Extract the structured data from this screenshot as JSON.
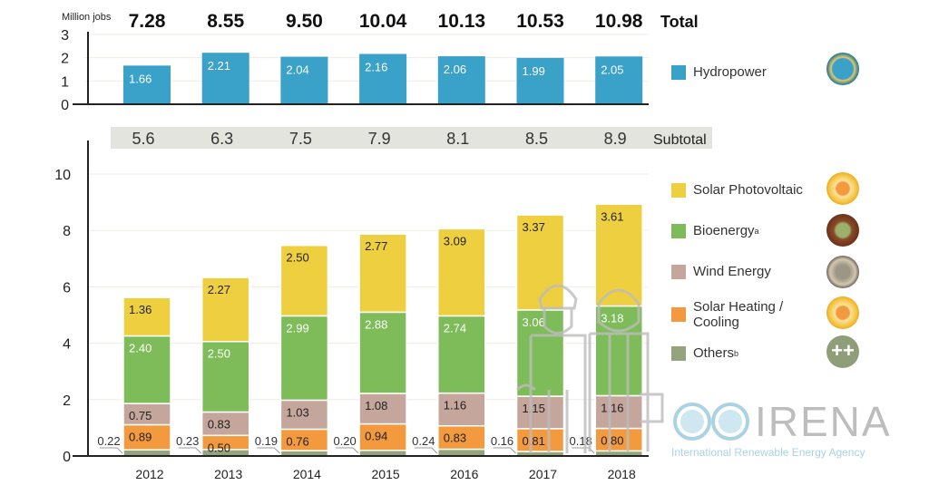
{
  "chart_data": [
    {
      "type": "bar",
      "unit_label": "Million jobs",
      "categories": [
        "2012",
        "2013",
        "2014",
        "2015",
        "2016",
        "2017",
        "2018"
      ],
      "ylim": [
        0,
        3
      ],
      "yticks": [
        0,
        1,
        2,
        3
      ],
      "grid": true,
      "series": [
        {
          "name": "Hydropower",
          "values": [
            1.66,
            2.21,
            2.04,
            2.16,
            2.06,
            1.99,
            2.05
          ],
          "color": "#3aa1c9"
        }
      ],
      "totals_label": "Total",
      "totals": [
        "7.28",
        "8.55",
        "9.50",
        "10.04",
        "10.13",
        "10.53",
        "10.98"
      ],
      "legend_position": "right"
    },
    {
      "type": "stacked-bar",
      "categories": [
        "2012",
        "2013",
        "2014",
        "2015",
        "2016",
        "2017",
        "2018"
      ],
      "ylim": [
        0,
        10
      ],
      "yticks": [
        0,
        2,
        4,
        6,
        8,
        10
      ],
      "grid": true,
      "subtotal_label": "Subtotal",
      "subtotals": [
        "5.6",
        "6.3",
        "7.5",
        "7.9",
        "8.1",
        "8.5",
        "8.9"
      ],
      "series": [
        {
          "name": "Others",
          "superscript": "b",
          "values": [
            0.22,
            0.23,
            0.19,
            0.2,
            0.24,
            0.16,
            0.18
          ],
          "color": "#95a47c"
        },
        {
          "name": "Solar Heating / Cooling",
          "values": [
            0.89,
            0.5,
            0.76,
            0.94,
            0.83,
            0.81,
            0.8
          ],
          "color": "#f39a3f"
        },
        {
          "name": "Wind Energy",
          "values": [
            0.75,
            0.83,
            1.03,
            1.08,
            1.16,
            1.15,
            1.16
          ],
          "color": "#c4a69c"
        },
        {
          "name": "Bioenergy",
          "superscript": "a",
          "values": [
            2.4,
            2.5,
            2.99,
            2.88,
            2.74,
            3.06,
            3.18
          ],
          "color": "#7dbc58"
        },
        {
          "name": "Solar Photovoltaic",
          "values": [
            1.36,
            2.27,
            2.5,
            2.77,
            3.09,
            3.37,
            3.61
          ],
          "color": "#eecf3f"
        }
      ],
      "legend_position": "right"
    }
  ],
  "logo": {
    "name": "IRENA",
    "tagline": "International Renewable Energy Agency"
  }
}
